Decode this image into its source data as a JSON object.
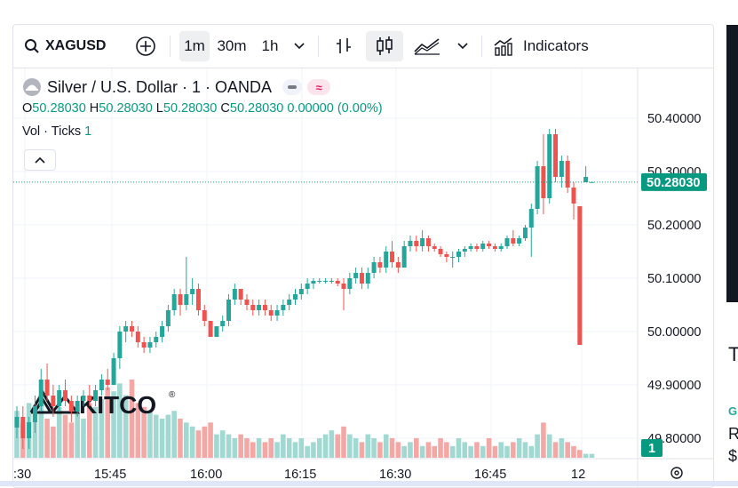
{
  "toolbar": {
    "symbol": "XAGUSD",
    "intervals": [
      "1m",
      "30m",
      "1h"
    ],
    "active_interval": "1m",
    "indicators_label": "Indicators"
  },
  "legend": {
    "title": "Silver / U.S. Dollar · 1 · OANDA",
    "ohlc": {
      "o_label": "O",
      "o": "50.28030",
      "h_label": "H",
      "h": "50.28030",
      "l_label": "L",
      "l": "50.28030",
      "c_label": "C",
      "c": "50.28030",
      "change": "0.00000 (0.00%)"
    },
    "vol_label": "Vol · Ticks",
    "vol_value": "1"
  },
  "watermark": {
    "text": "KITCO",
    "reg": "®"
  },
  "price_label": "50.28030",
  "volume_label": "1",
  "side_text": {
    "t": "T",
    "g": "G",
    "r": "R",
    "d": "$"
  },
  "colors": {
    "up": "#26a69a",
    "down": "#ef5350",
    "up_vol": "#a1d8d2",
    "down_vol": "#f4a8a6",
    "price_line": "#089981"
  },
  "chart_data": {
    "type": "candlestick",
    "title": "Silver / U.S. Dollar · 1 · OANDA",
    "x_tick_labels": [
      ":30",
      "15:45",
      "16:00",
      "16:15",
      "16:30",
      "16:45",
      "12"
    ],
    "y_tick_labels": [
      "50.40000",
      "50.30000",
      "50.20000",
      "50.10000",
      "50.00000",
      "49.90000",
      "49.80000"
    ],
    "ylim": [
      49.745,
      50.445
    ],
    "last_price": 50.2803,
    "candles": [
      [
        49.82,
        49.86,
        49.8,
        49.84
      ],
      [
        49.84,
        49.86,
        49.78,
        49.8
      ],
      [
        49.8,
        49.84,
        49.78,
        49.83
      ],
      [
        49.83,
        49.88,
        49.81,
        49.86
      ],
      [
        49.86,
        49.93,
        49.85,
        49.91
      ],
      [
        49.91,
        49.94,
        49.87,
        49.88
      ],
      [
        49.88,
        49.9,
        49.84,
        49.86
      ],
      [
        49.86,
        49.9,
        49.85,
        49.89
      ],
      [
        49.89,
        49.91,
        49.86,
        49.87
      ],
      [
        49.87,
        49.88,
        49.83,
        49.85
      ],
      [
        49.85,
        49.88,
        49.84,
        49.87
      ],
      [
        49.87,
        49.89,
        49.86,
        49.88
      ],
      [
        49.88,
        49.9,
        49.86,
        49.87
      ],
      [
        49.87,
        49.9,
        49.86,
        49.89
      ],
      [
        49.89,
        49.92,
        49.88,
        49.91
      ],
      [
        49.91,
        49.93,
        49.89,
        49.9
      ],
      [
        49.9,
        49.96,
        49.9,
        49.95
      ],
      [
        49.95,
        50.01,
        49.93,
        50.0
      ],
      [
        50.0,
        50.02,
        49.98,
        50.01
      ],
      [
        50.01,
        50.02,
        49.99,
        50.0
      ],
      [
        50.0,
        50.01,
        49.97,
        49.98
      ],
      [
        49.98,
        49.99,
        49.96,
        49.97
      ],
      [
        49.97,
        49.99,
        49.96,
        49.98
      ],
      [
        49.98,
        50.0,
        49.97,
        49.99
      ],
      [
        49.99,
        50.02,
        49.98,
        50.01
      ],
      [
        50.01,
        50.05,
        50.0,
        50.04
      ],
      [
        50.04,
        50.08,
        50.03,
        50.07
      ],
      [
        50.07,
        50.08,
        50.03,
        50.05
      ],
      [
        50.05,
        50.14,
        50.04,
        50.07
      ],
      [
        50.07,
        50.1,
        50.05,
        50.08
      ],
      [
        50.08,
        50.09,
        50.03,
        50.04
      ],
      [
        50.04,
        50.05,
        50.01,
        50.02
      ],
      [
        50.02,
        50.02,
        49.99,
        49.99
      ],
      [
        49.99,
        50.01,
        49.99,
        50.01
      ],
      [
        50.01,
        50.03,
        50.0,
        50.02
      ],
      [
        50.02,
        50.07,
        50.01,
        50.06
      ],
      [
        50.06,
        50.09,
        50.05,
        50.08
      ],
      [
        50.08,
        50.08,
        50.05,
        50.06
      ],
      [
        50.06,
        50.07,
        50.04,
        50.05
      ],
      [
        50.05,
        50.06,
        50.03,
        50.04
      ],
      [
        50.04,
        50.06,
        50.03,
        50.05
      ],
      [
        50.05,
        50.06,
        50.03,
        50.04
      ],
      [
        50.04,
        50.05,
        50.02,
        50.03
      ],
      [
        50.03,
        50.05,
        50.02,
        50.04
      ],
      [
        50.04,
        50.06,
        50.03,
        50.05
      ],
      [
        50.05,
        50.07,
        50.04,
        50.06
      ],
      [
        50.06,
        50.08,
        50.05,
        50.07
      ],
      [
        50.07,
        50.09,
        50.06,
        50.08
      ],
      [
        50.08,
        50.1,
        50.07,
        50.09
      ],
      [
        50.09,
        50.1,
        50.08,
        50.095
      ],
      [
        50.095,
        50.1,
        50.09,
        50.095
      ],
      [
        50.095,
        50.1,
        50.09,
        50.095
      ],
      [
        50.095,
        50.1,
        50.09,
        50.095
      ],
      [
        50.095,
        50.1,
        50.085,
        50.09
      ],
      [
        50.09,
        50.1,
        50.04,
        50.08
      ],
      [
        50.08,
        50.11,
        50.07,
        50.1
      ],
      [
        50.1,
        50.12,
        50.09,
        50.11
      ],
      [
        50.11,
        50.12,
        50.08,
        50.09
      ],
      [
        50.09,
        50.12,
        50.08,
        50.11
      ],
      [
        50.11,
        50.14,
        50.1,
        50.13
      ],
      [
        50.13,
        50.14,
        50.11,
        50.12
      ],
      [
        50.12,
        50.16,
        50.11,
        50.15
      ],
      [
        50.15,
        50.17,
        50.12,
        50.13
      ],
      [
        50.13,
        50.14,
        50.11,
        50.12
      ],
      [
        50.12,
        50.17,
        50.12,
        50.16
      ],
      [
        50.16,
        50.18,
        50.15,
        50.17
      ],
      [
        50.17,
        50.18,
        50.15,
        50.16
      ],
      [
        50.16,
        50.19,
        50.15,
        50.175
      ],
      [
        50.175,
        50.18,
        50.15,
        50.16
      ],
      [
        50.16,
        50.165,
        50.15,
        50.155
      ],
      [
        50.155,
        50.16,
        50.14,
        50.145
      ],
      [
        50.145,
        50.15,
        50.13,
        50.14
      ],
      [
        50.14,
        50.15,
        50.12,
        50.14
      ],
      [
        50.14,
        50.155,
        50.13,
        50.15
      ],
      [
        50.15,
        50.16,
        50.14,
        50.155
      ],
      [
        50.155,
        50.165,
        50.15,
        50.16
      ],
      [
        50.16,
        50.165,
        50.15,
        50.155
      ],
      [
        50.155,
        50.17,
        50.15,
        50.165
      ],
      [
        50.165,
        50.17,
        50.155,
        50.16
      ],
      [
        50.16,
        50.165,
        50.15,
        50.155
      ],
      [
        50.155,
        50.165,
        50.15,
        50.16
      ],
      [
        50.16,
        50.18,
        50.155,
        50.175
      ],
      [
        50.175,
        50.19,
        50.16,
        50.165
      ],
      [
        50.165,
        50.18,
        50.16,
        50.175
      ],
      [
        50.175,
        50.2,
        50.17,
        50.195
      ],
      [
        50.195,
        50.24,
        50.14,
        50.23
      ],
      [
        50.23,
        50.32,
        50.22,
        50.31
      ],
      [
        50.31,
        50.37,
        50.22,
        50.25
      ],
      [
        50.25,
        50.38,
        50.24,
        50.37
      ],
      [
        50.37,
        50.38,
        50.28,
        50.29
      ],
      [
        50.29,
        50.33,
        50.27,
        50.32
      ],
      [
        50.32,
        50.33,
        50.26,
        50.27
      ],
      [
        50.27,
        50.28,
        50.21,
        50.24
      ],
      [
        50.235,
        50.235,
        49.975,
        49.975
      ],
      [
        50.28,
        50.31,
        50.28,
        50.29
      ],
      [
        50.2803,
        50.2803,
        50.2803,
        50.2803
      ]
    ],
    "volumes": [
      12,
      9,
      14,
      11,
      16,
      10,
      8,
      13,
      11,
      9,
      12,
      10,
      14,
      13,
      15,
      18,
      17,
      19,
      16,
      20,
      14,
      13,
      12,
      11,
      10,
      11,
      12,
      10,
      9,
      8,
      7,
      8,
      9,
      6,
      7,
      6,
      5,
      6,
      5,
      4,
      5,
      4,
      5,
      4,
      6,
      5,
      4,
      5,
      3,
      4,
      5,
      6,
      7,
      6,
      8,
      6,
      5,
      4,
      6,
      5,
      4,
      6,
      5,
      4,
      3,
      4,
      5,
      3,
      4,
      3,
      5,
      4,
      3,
      5,
      4,
      3,
      4,
      3,
      5,
      3,
      4,
      3,
      4,
      5,
      4,
      3,
      6,
      9,
      6,
      4,
      5,
      4,
      3,
      2,
      1,
      1
    ]
  }
}
